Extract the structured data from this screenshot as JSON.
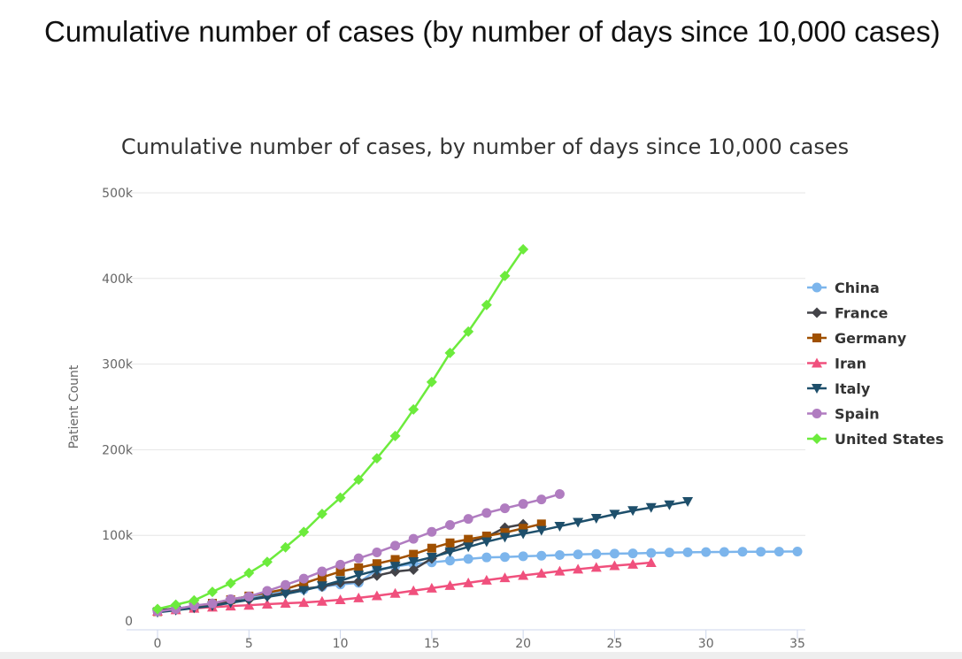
{
  "page_title": "Cumulative number of cases (by number of days since 10,000 cases)",
  "chart_data": {
    "type": "line",
    "title": "Cumulative number of cases, by number of days since 10,000 cases",
    "xlabel": "",
    "ylabel": "Patient Count",
    "xlim": [
      0,
      35
    ],
    "ylim": [
      0,
      500000
    ],
    "xticks": [
      0,
      5,
      10,
      15,
      20,
      25,
      30,
      35
    ],
    "yticks": [
      0,
      100000,
      200000,
      300000,
      400000,
      500000
    ],
    "ytick_labels": [
      "0",
      "100k",
      "200k",
      "300k",
      "400k",
      "500k"
    ],
    "grid": true,
    "legend_position": "right",
    "series": [
      {
        "name": "China",
        "color": "#7cb5ec",
        "marker": "circle",
        "values": [
          11.8,
          14.4,
          17.2,
          20.4,
          24.5,
          28,
          31,
          34.5,
          37,
          40,
          42.6,
          44.6,
          59.8,
          63.8,
          66.5,
          68.5,
          70.5,
          72.4,
          74.2,
          74.7,
          75.6,
          76.2,
          77,
          77.7,
          78.2,
          78.6,
          78.9,
          79.4,
          79.9,
          80.2,
          80.4,
          80.6,
          80.8,
          80.9,
          81,
          81.1
        ]
      },
      {
        "name": "France",
        "color": "#434348",
        "marker": "diamond",
        "values": [
          12.6,
          14.5,
          16.7,
          19.9,
          22.6,
          24.9,
          29.1,
          32.9,
          37.6,
          40.2,
          44.6,
          46,
          53,
          57.7,
          59.9,
          73,
          83,
          92,
          98,
          109,
          113
        ]
      },
      {
        "name": "Germany",
        "color": "#a05000",
        "marker": "square",
        "values": [
          10.9,
          13.9,
          16.6,
          20.7,
          24.9,
          29.1,
          32.9,
          37.3,
          43.9,
          50.9,
          57.7,
          62.1,
          66.9,
          71.8,
          77.9,
          85,
          91.2,
          95.4,
          99.2,
          103.2,
          108.2,
          113.3
        ]
      },
      {
        "name": "Iran",
        "color": "#f0507d",
        "marker": "triangle",
        "values": [
          11.4,
          13,
          14.9,
          16.2,
          17.4,
          18.4,
          19.6,
          20.6,
          21.6,
          23,
          24.8,
          27,
          29.4,
          32.3,
          35.4,
          38.3,
          41.5,
          44.6,
          47.6,
          50.5,
          53.2,
          55.7,
          58.2,
          60.5,
          62.6,
          64.6,
          66.2,
          68.2
        ]
      },
      {
        "name": "Italy",
        "color": "#1e4f6b",
        "marker": "triangle-down",
        "values": [
          10.1,
          12.5,
          15.1,
          17.7,
          21.2,
          24.7,
          28,
          31.5,
          35.7,
          41,
          47,
          53.6,
          59.1,
          63.9,
          69.2,
          74.4,
          80.6,
          86.5,
          92.5,
          97.7,
          101.7,
          105.8,
          110.6,
          115.2,
          119.8,
          124.6,
          128.9,
          132.5,
          135.6,
          139.4
        ]
      },
      {
        "name": "Spain",
        "color": "#b07cc0",
        "marker": "circle",
        "values": [
          11.2,
          13.9,
          17.9,
          20.4,
          25.4,
          28.6,
          35.1,
          42.1,
          49.5,
          57.8,
          65.7,
          73.2,
          80.1,
          87.9,
          95.9,
          104.1,
          112.1,
          119.2,
          126.2,
          131.6,
          136.7,
          141.9,
          148.2
        ]
      },
      {
        "name": "United States",
        "color": "#6ceb3c",
        "marker": "diamond",
        "values": [
          14,
          19,
          24,
          34,
          44,
          56,
          69,
          86,
          104,
          125,
          144,
          165,
          190,
          216,
          247,
          279,
          313,
          338,
          369,
          403,
          434
        ]
      }
    ],
    "value_unit": "thousands"
  }
}
